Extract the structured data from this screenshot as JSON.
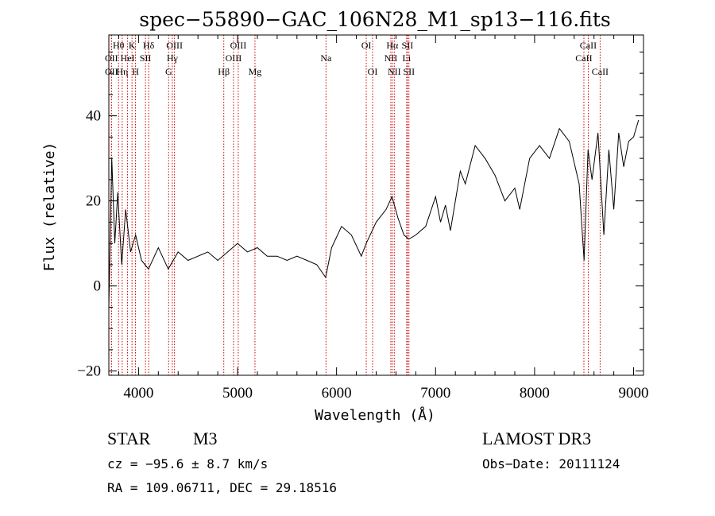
{
  "chart_data": {
    "type": "line",
    "title": "spec−55890−GAC_106N28_M1_sp13−116.fits",
    "xlabel": "Wavelength (Å)",
    "ylabel": "Flux (relative)",
    "xlim": [
      3700,
      9100
    ],
    "ylim": [
      -21,
      59
    ],
    "x_ticks": [
      4000,
      5000,
      6000,
      7000,
      8000,
      9000
    ],
    "y_ticks": [
      -20,
      0,
      20,
      40
    ],
    "y_tick_labels": [
      "−20",
      "0",
      "20",
      "40"
    ],
    "grid": false,
    "series": [
      {
        "x": [
          3700,
          3730,
          3760,
          3790,
          3830,
          3870,
          3920,
          3970,
          4030,
          4100,
          4200,
          4300,
          4400,
          4500,
          4600,
          4700,
          4800,
          4900,
          5000,
          5100,
          5200,
          5300,
          5400,
          5500,
          5600,
          5700,
          5800,
          5890,
          5950,
          6050,
          6150,
          6250,
          6300,
          6400,
          6500,
          6560,
          6620,
          6680,
          6730,
          6800,
          6900,
          7000,
          7050,
          7100,
          7150,
          7250,
          7300,
          7400,
          7500,
          7600,
          7700,
          7800,
          7850,
          7950,
          8050,
          8150,
          8250,
          8350,
          8450,
          8500,
          8540,
          8580,
          8640,
          8700,
          8750,
          8800,
          8850,
          8900,
          8950,
          9000,
          9050
        ],
        "values": [
          -5,
          30,
          10,
          22,
          5,
          18,
          8,
          12,
          6,
          4,
          9,
          4,
          8,
          6,
          7,
          8,
          6,
          8,
          10,
          8,
          9,
          7,
          7,
          6,
          7,
          6,
          5,
          2,
          9,
          14,
          12,
          7,
          10,
          15,
          18,
          21,
          16,
          12,
          11,
          12,
          14,
          21,
          15,
          19,
          13,
          27,
          24,
          33,
          30,
          26,
          20,
          23,
          18,
          30,
          33,
          30,
          37,
          34,
          24,
          6,
          32,
          25,
          36,
          12,
          32,
          18,
          36,
          28,
          34,
          35,
          39
        ]
      }
    ],
    "line_markers": [
      {
        "label": "Hθ",
        "x": 3798,
        "row": 1
      },
      {
        "label": "OII",
        "x": 3727,
        "row": 2
      },
      {
        "label": "OII",
        "x": 3727,
        "row": 3
      },
      {
        "label": "Hη",
        "x": 3835,
        "row": 3
      },
      {
        "label": "HeI",
        "x": 3889,
        "row": 2
      },
      {
        "label": "K",
        "x": 3934,
        "row": 1
      },
      {
        "label": "H",
        "x": 3969,
        "row": 3
      },
      {
        "label": "SII",
        "x": 4070,
        "row": 2
      },
      {
        "label": "Hδ",
        "x": 4102,
        "row": 1
      },
      {
        "label": "G",
        "x": 4304,
        "row": 3
      },
      {
        "label": "OIII",
        "x": 4363,
        "row": 1
      },
      {
        "label": "Hγ",
        "x": 4341,
        "row": 2
      },
      {
        "label": "Hβ",
        "x": 4861,
        "row": 3
      },
      {
        "label": "OIII",
        "x": 4959,
        "row": 2
      },
      {
        "label": "OIII",
        "x": 5007,
        "row": 1
      },
      {
        "label": "Mg",
        "x": 5176,
        "row": 3
      },
      {
        "label": "Na",
        "x": 5893,
        "row": 2
      },
      {
        "label": "OI",
        "x": 6300,
        "row": 1
      },
      {
        "label": "OI",
        "x": 6364,
        "row": 3
      },
      {
        "label": "NII",
        "x": 6548,
        "row": 2
      },
      {
        "label": "Hα",
        "x": 6563,
        "row": 1
      },
      {
        "label": "NII",
        "x": 6583,
        "row": 3
      },
      {
        "label": "Li",
        "x": 6708,
        "row": 2
      },
      {
        "label": "SII",
        "x": 6716,
        "row": 1
      },
      {
        "label": "SII",
        "x": 6731,
        "row": 3
      },
      {
        "label": "CaII",
        "x": 8498,
        "row": 2
      },
      {
        "label": "CaII",
        "x": 8542,
        "row": 1
      },
      {
        "label": "CaII",
        "x": 8662,
        "row": 3
      }
    ]
  },
  "info": {
    "object_class": "STAR",
    "subclass": "M3",
    "survey": "LAMOST DR3",
    "redshift_line": "cz = −95.6 ± 8.7 km/s",
    "obs_date": "Obs−Date: 20111124",
    "coords": "RA = 109.06711, DEC =  29.18516"
  }
}
